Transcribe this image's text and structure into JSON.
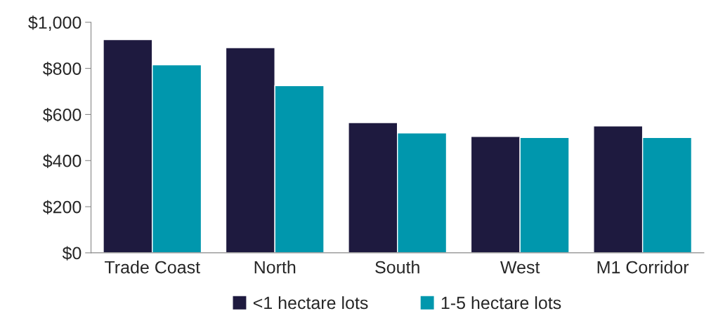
{
  "chart_data": {
    "type": "bar",
    "categories": [
      "Trade Coast",
      "North",
      "South",
      "West",
      "M1 Corridor"
    ],
    "series": [
      {
        "name": "<1 hectare lots",
        "color": "#1e1a3f",
        "values": [
          925,
          890,
          565,
          505,
          550
        ]
      },
      {
        "name": "1-5 hectare lots",
        "color": "#0097ad",
        "values": [
          815,
          725,
          520,
          500,
          500
        ]
      }
    ],
    "ylim": [
      0,
      1000
    ],
    "yticks": [
      {
        "value": 0,
        "label": "$0"
      },
      {
        "value": 200,
        "label": "$200"
      },
      {
        "value": 400,
        "label": "$400"
      },
      {
        "value": 600,
        "label": "$600"
      },
      {
        "value": 800,
        "label": "$800"
      },
      {
        "value": 1000,
        "label": "$1,000"
      }
    ],
    "grid": false,
    "legend": "bottom"
  }
}
